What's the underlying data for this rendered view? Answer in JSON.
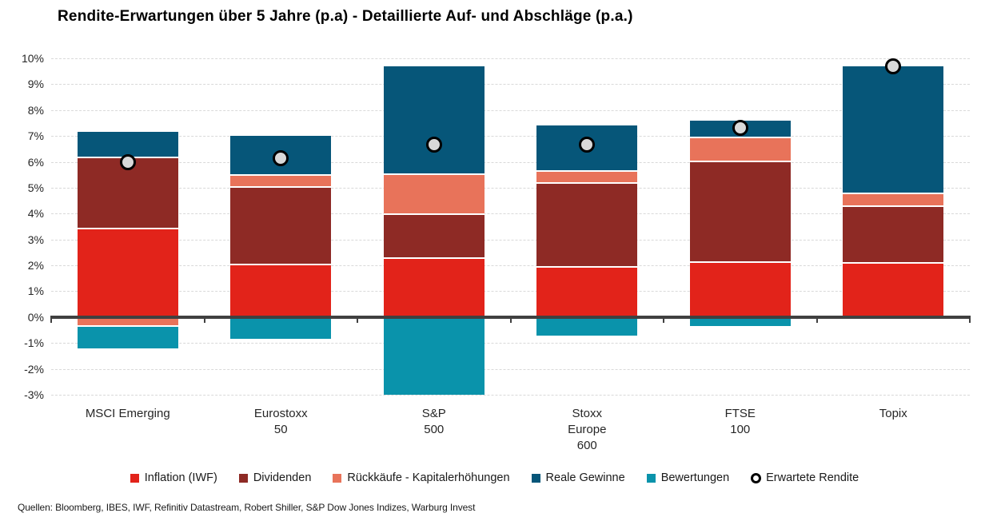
{
  "page": {
    "title": "Rendite-Erwartungen über 5 Jahre (p.a) - Detaillierte Auf- und Abschläge (p.a.)",
    "source": "Quellen: Bloomberg, IBES, IWF, Refinitiv Datastream, Robert Shiller, S&P Dow Jones Indizes, Warburg Invest"
  },
  "colors": {
    "inflation": "#e2231a",
    "dividenden": "#8e2a25",
    "rueckkaeufe": "#e8735a",
    "reale_gewinne": "#065679",
    "bewertungen": "#0a93ab",
    "marker_fill": "#d9d9d9",
    "marker_stroke": "#000000",
    "gridline": "#d9d9d9",
    "axis": "#404040"
  },
  "chart_data": {
    "type": "bar",
    "stacked": true,
    "title": "Rendite-Erwartungen über 5 Jahre (p.a) - Detaillierte Auf- und Abschläge (p.a.)",
    "categories": [
      "MSCI Emerging",
      "Eurostoxx 50",
      "S&P 500",
      "Stoxx Europe 600",
      "FTSE 100",
      "Topix"
    ],
    "category_label_lines": [
      [
        "MSCI Emerging"
      ],
      [
        "Eurostoxx",
        "50"
      ],
      [
        "S&P",
        "500"
      ],
      [
        "Stoxx",
        "Europe",
        "600"
      ],
      [
        "FTSE",
        "100"
      ],
      [
        "Topix"
      ]
    ],
    "series": [
      {
        "name": "Inflation (IWF)",
        "color": "#e2231a",
        "values": [
          3.4,
          2.0,
          2.25,
          1.9,
          2.1,
          2.05
        ]
      },
      {
        "name": "Dividenden",
        "color": "#8e2a25",
        "values": [
          2.75,
          3.0,
          1.7,
          3.25,
          3.9,
          2.2
        ]
      },
      {
        "name": "Rückkäufe - Kapitalerhöhungen",
        "color": "#e8735a",
        "values": [
          -0.3,
          0.45,
          1.55,
          0.45,
          0.9,
          0.5
        ]
      },
      {
        "name": "Reale Gewinne",
        "color": "#065679",
        "values": [
          1.0,
          1.55,
          4.2,
          1.8,
          0.7,
          4.95
        ]
      },
      {
        "name": "Bewertungen",
        "color": "#0a93ab",
        "values": [
          -0.9,
          -0.85,
          -3.0,
          -0.7,
          -0.35,
          0
        ]
      }
    ],
    "marker_series": {
      "name": "Erwartete Rendite",
      "values": [
        6.0,
        6.15,
        6.65,
        6.65,
        7.3,
        9.7
      ]
    },
    "ylim": [
      -3,
      10
    ],
    "ytick_step": 1,
    "ytick_labels": [
      "10%",
      "9%",
      "8%",
      "7%",
      "6%",
      "5%",
      "4%",
      "3%",
      "2%",
      "1%",
      "0%",
      "-1%",
      "-2%",
      "-3%"
    ],
    "xlabel": "",
    "ylabel": "",
    "grid": "horizontal-dashed",
    "legend_position": "bottom"
  }
}
